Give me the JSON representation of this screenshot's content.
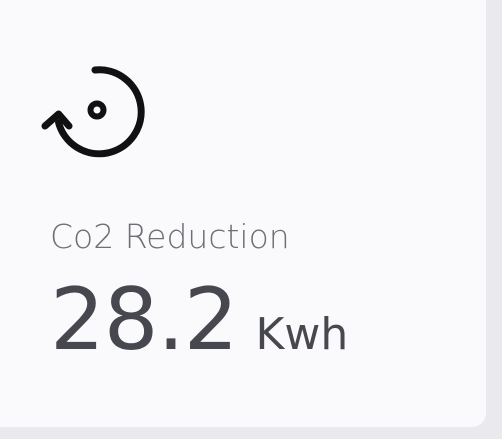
{
  "metric": {
    "icon": "refresh-cycle-icon",
    "label": "Co2 Reduction",
    "value": "28.2",
    "unit": "Kwh"
  },
  "colors": {
    "card_background": "#fafafc",
    "page_background": "#e9e9ee",
    "label_text": "#6e6e74",
    "value_text": "#47474f",
    "icon_stroke": "#111111"
  }
}
